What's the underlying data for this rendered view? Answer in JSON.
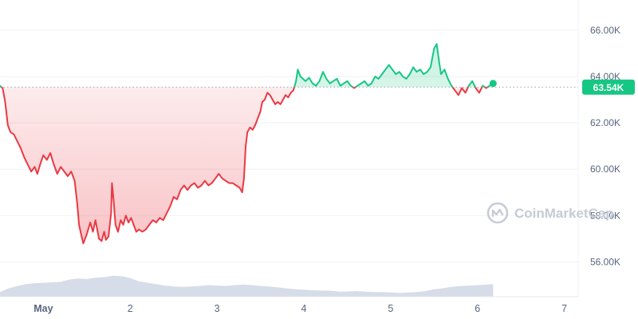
{
  "chart_data": {
    "type": "line",
    "baseline": 63.54,
    "last_price_label": "63.54K",
    "watermark": "CoinMarketCap",
    "y_ticks": [
      {
        "value": 56,
        "label": "56.00K"
      },
      {
        "value": 58,
        "label": "58.00K"
      },
      {
        "value": 60,
        "label": "60.00K"
      },
      {
        "value": 62,
        "label": "62.00K"
      },
      {
        "value": 64,
        "label": "64.00K"
      },
      {
        "value": 66,
        "label": "66.00K"
      }
    ],
    "x_ticks": [
      {
        "value": 1,
        "label": "May"
      },
      {
        "value": 2,
        "label": "2"
      },
      {
        "value": 3,
        "label": "3"
      },
      {
        "value": 4,
        "label": "4"
      },
      {
        "value": 5,
        "label": "5"
      },
      {
        "value": 6,
        "label": "6"
      },
      {
        "value": 7,
        "label": "7"
      }
    ],
    "xlim": [
      0.5,
      7.16
    ],
    "ylim": [
      54.5,
      67.3
    ],
    "colors": {
      "up": "#16c784",
      "down": "#ea3943",
      "up_fill": "#16c784",
      "down_fill": "#ea3943",
      "volume": "#cfd6e4",
      "grid": "#eff2f5",
      "baseline_dots": "#9aa3b2",
      "price_tag": "#16c784"
    },
    "series": [
      {
        "values": [
          [
            0.5,
            63.6
          ],
          [
            0.53,
            63.5
          ],
          [
            0.56,
            62.9
          ],
          [
            0.59,
            61.9
          ],
          [
            0.62,
            61.6
          ],
          [
            0.66,
            61.5
          ],
          [
            0.7,
            61.2
          ],
          [
            0.74,
            60.9
          ],
          [
            0.78,
            60.5
          ],
          [
            0.82,
            60.2
          ],
          [
            0.86,
            59.9
          ],
          [
            0.9,
            60.1
          ],
          [
            0.93,
            59.8
          ],
          [
            0.97,
            60.3
          ],
          [
            1.0,
            60.6
          ],
          [
            1.04,
            60.4
          ],
          [
            1.08,
            60.7
          ],
          [
            1.12,
            60.2
          ],
          [
            1.16,
            59.8
          ],
          [
            1.2,
            60.1
          ],
          [
            1.24,
            59.9
          ],
          [
            1.28,
            59.7
          ],
          [
            1.32,
            59.9
          ],
          [
            1.36,
            59.5
          ],
          [
            1.39,
            58.5
          ],
          [
            1.41,
            57.6
          ],
          [
            1.44,
            57.1
          ],
          [
            1.46,
            56.8
          ],
          [
            1.5,
            57.2
          ],
          [
            1.54,
            57.7
          ],
          [
            1.57,
            57.3
          ],
          [
            1.6,
            57.8
          ],
          [
            1.62,
            57.4
          ],
          [
            1.64,
            57.0
          ],
          [
            1.67,
            56.9
          ],
          [
            1.7,
            57.3
          ],
          [
            1.72,
            56.95
          ],
          [
            1.75,
            57.1
          ],
          [
            1.78,
            58.1
          ],
          [
            1.79,
            59.4
          ],
          [
            1.81,
            58.6
          ],
          [
            1.83,
            57.6
          ],
          [
            1.86,
            57.3
          ],
          [
            1.89,
            57.8
          ],
          [
            1.92,
            57.6
          ],
          [
            1.95,
            58.0
          ],
          [
            1.98,
            57.7
          ],
          [
            2.01,
            57.9
          ],
          [
            2.04,
            57.6
          ],
          [
            2.07,
            57.3
          ],
          [
            2.1,
            57.4
          ],
          [
            2.14,
            57.3
          ],
          [
            2.18,
            57.4
          ],
          [
            2.22,
            57.6
          ],
          [
            2.26,
            57.8
          ],
          [
            2.3,
            57.7
          ],
          [
            2.34,
            57.9
          ],
          [
            2.38,
            57.8
          ],
          [
            2.42,
            58.1
          ],
          [
            2.46,
            58.4
          ],
          [
            2.5,
            58.8
          ],
          [
            2.54,
            58.7
          ],
          [
            2.58,
            59.1
          ],
          [
            2.62,
            59.3
          ],
          [
            2.66,
            59.1
          ],
          [
            2.7,
            59.3
          ],
          [
            2.74,
            59.4
          ],
          [
            2.78,
            59.2
          ],
          [
            2.82,
            59.3
          ],
          [
            2.86,
            59.5
          ],
          [
            2.9,
            59.3
          ],
          [
            2.94,
            59.4
          ],
          [
            2.98,
            59.6
          ],
          [
            3.02,
            59.8
          ],
          [
            3.06,
            59.6
          ],
          [
            3.1,
            59.5
          ],
          [
            3.14,
            59.4
          ],
          [
            3.18,
            59.4
          ],
          [
            3.22,
            59.3
          ],
          [
            3.26,
            59.2
          ],
          [
            3.29,
            59.0
          ],
          [
            3.31,
            59.6
          ],
          [
            3.33,
            61.0
          ],
          [
            3.35,
            61.6
          ],
          [
            3.38,
            61.8
          ],
          [
            3.41,
            61.7
          ],
          [
            3.44,
            61.9
          ],
          [
            3.47,
            62.2
          ],
          [
            3.5,
            62.5
          ],
          [
            3.52,
            62.9
          ],
          [
            3.55,
            63.0
          ],
          [
            3.58,
            63.3
          ],
          [
            3.61,
            63.2
          ],
          [
            3.64,
            63.0
          ],
          [
            3.67,
            62.8
          ],
          [
            3.7,
            62.9
          ],
          [
            3.73,
            62.8
          ],
          [
            3.76,
            63.0
          ],
          [
            3.79,
            63.2
          ],
          [
            3.82,
            63.1
          ],
          [
            3.85,
            63.3
          ],
          [
            3.88,
            63.4
          ],
          [
            3.91,
            63.8
          ],
          [
            3.93,
            64.3
          ],
          [
            3.96,
            64.0
          ],
          [
            3.99,
            63.9
          ],
          [
            4.02,
            63.8
          ],
          [
            4.06,
            63.95
          ],
          [
            4.1,
            63.7
          ],
          [
            4.14,
            63.6
          ],
          [
            4.18,
            63.8
          ],
          [
            4.22,
            64.2
          ],
          [
            4.26,
            63.9
          ],
          [
            4.3,
            63.7
          ],
          [
            4.34,
            63.8
          ],
          [
            4.38,
            63.9
          ],
          [
            4.42,
            63.6
          ],
          [
            4.46,
            63.7
          ],
          [
            4.5,
            63.8
          ],
          [
            4.54,
            63.6
          ],
          [
            4.58,
            63.5
          ],
          [
            4.62,
            63.6
          ],
          [
            4.66,
            63.7
          ],
          [
            4.7,
            63.8
          ],
          [
            4.74,
            63.6
          ],
          [
            4.78,
            63.7
          ],
          [
            4.82,
            64.0
          ],
          [
            4.86,
            63.9
          ],
          [
            4.9,
            64.1
          ],
          [
            4.94,
            64.3
          ],
          [
            4.98,
            64.5
          ],
          [
            5.02,
            64.3
          ],
          [
            5.06,
            64.1
          ],
          [
            5.1,
            64.2
          ],
          [
            5.14,
            64.0
          ],
          [
            5.18,
            63.9
          ],
          [
            5.22,
            64.1
          ],
          [
            5.26,
            64.4
          ],
          [
            5.3,
            64.2
          ],
          [
            5.34,
            64.3
          ],
          [
            5.38,
            64.1
          ],
          [
            5.42,
            64.2
          ],
          [
            5.46,
            64.4
          ],
          [
            5.5,
            65.2
          ],
          [
            5.53,
            65.4
          ],
          [
            5.56,
            64.6
          ],
          [
            5.58,
            64.1
          ],
          [
            5.62,
            64.3
          ],
          [
            5.66,
            63.9
          ],
          [
            5.7,
            63.6
          ],
          [
            5.74,
            63.4
          ],
          [
            5.78,
            63.2
          ],
          [
            5.82,
            63.5
          ],
          [
            5.86,
            63.3
          ],
          [
            5.9,
            63.6
          ],
          [
            5.94,
            63.8
          ],
          [
            5.98,
            63.5
          ],
          [
            6.02,
            63.3
          ],
          [
            6.06,
            63.6
          ],
          [
            6.1,
            63.5
          ],
          [
            6.14,
            63.6
          ],
          [
            6.18,
            63.7
          ]
        ]
      }
    ],
    "volume": [
      [
        0.5,
        54.7
      ],
      [
        0.6,
        54.86
      ],
      [
        0.7,
        54.96
      ],
      [
        0.8,
        55.04
      ],
      [
        0.9,
        55.08
      ],
      [
        1.0,
        55.1
      ],
      [
        1.1,
        55.12
      ],
      [
        1.2,
        55.14
      ],
      [
        1.3,
        55.24
      ],
      [
        1.4,
        55.28
      ],
      [
        1.5,
        55.26
      ],
      [
        1.6,
        55.32
      ],
      [
        1.7,
        55.34
      ],
      [
        1.8,
        55.4
      ],
      [
        1.9,
        55.38
      ],
      [
        2.0,
        55.3
      ],
      [
        2.1,
        55.16
      ],
      [
        2.2,
        55.1
      ],
      [
        2.3,
        55.04
      ],
      [
        2.4,
        54.98
      ],
      [
        2.5,
        54.94
      ],
      [
        2.6,
        54.92
      ],
      [
        2.7,
        54.94
      ],
      [
        2.8,
        54.96
      ],
      [
        2.9,
        55.0
      ],
      [
        3.0,
        54.98
      ],
      [
        3.1,
        54.96
      ],
      [
        3.2,
        55.0
      ],
      [
        3.3,
        55.02
      ],
      [
        3.4,
        55.0
      ],
      [
        3.5,
        54.96
      ],
      [
        3.6,
        54.94
      ],
      [
        3.7,
        54.9
      ],
      [
        3.8,
        54.86
      ],
      [
        3.9,
        54.82
      ],
      [
        4.0,
        54.8
      ],
      [
        4.1,
        54.78
      ],
      [
        4.2,
        54.76
      ],
      [
        4.3,
        54.76
      ],
      [
        4.4,
        54.72
      ],
      [
        4.5,
        54.72
      ],
      [
        4.6,
        54.74
      ],
      [
        4.7,
        54.72
      ],
      [
        4.8,
        54.7
      ],
      [
        4.9,
        54.7
      ],
      [
        5.0,
        54.68
      ],
      [
        5.1,
        54.66
      ],
      [
        5.2,
        54.68
      ],
      [
        5.3,
        54.7
      ],
      [
        5.4,
        54.74
      ],
      [
        5.5,
        54.82
      ],
      [
        5.6,
        54.86
      ],
      [
        5.7,
        54.92
      ],
      [
        5.8,
        54.96
      ],
      [
        5.9,
        54.98
      ],
      [
        6.0,
        55.0
      ],
      [
        6.1,
        55.02
      ],
      [
        6.18,
        55.04
      ]
    ]
  }
}
